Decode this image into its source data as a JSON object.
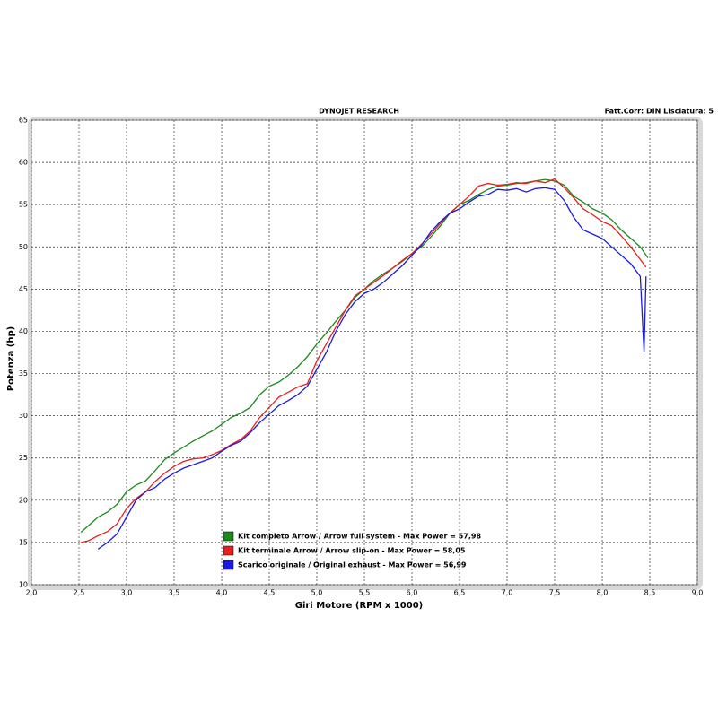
{
  "chart_data": {
    "type": "line",
    "title": "DYNOJET RESEARCH",
    "subtitle": "Fatt.Corr: DIN  Lisciatura: 5",
    "x_label": "Giri Motore (RPM x 1000)",
    "y_label": "Potenza (hp)",
    "xlim": [
      2,
      9
    ],
    "ylim": [
      10,
      65
    ],
    "xticks": [
      {
        "value": 2,
        "label": "2,0"
      },
      {
        "value": 2.5,
        "label": "2,5"
      },
      {
        "value": 3,
        "label": "3,0"
      },
      {
        "value": 3.5,
        "label": "3,5"
      },
      {
        "value": 4,
        "label": "4,0"
      },
      {
        "value": 4.5,
        "label": "4,5"
      },
      {
        "value": 5,
        "label": "5,0"
      },
      {
        "value": 5.5,
        "label": "5,5"
      },
      {
        "value": 6,
        "label": "6,0"
      },
      {
        "value": 6.5,
        "label": "6,5"
      },
      {
        "value": 7,
        "label": "7,0"
      },
      {
        "value": 7.5,
        "label": "7,5"
      },
      {
        "value": 8,
        "label": "8,0"
      },
      {
        "value": 8.5,
        "label": "8,5"
      },
      {
        "value": 9,
        "label": "9,0"
      }
    ],
    "yticks": [
      10,
      15,
      20,
      25,
      30,
      35,
      40,
      45,
      50,
      55,
      60,
      65
    ],
    "grid": true,
    "legend_position": "bottom-left",
    "series": [
      {
        "name": "Kit completo Arrow / Arrow full system - Max Power = 57,98",
        "color": "#1a8a1a",
        "x": [
          2.52,
          2.6,
          2.7,
          2.8,
          2.9,
          3.0,
          3.1,
          3.2,
          3.3,
          3.4,
          3.5,
          3.6,
          3.7,
          3.8,
          3.9,
          4.0,
          4.1,
          4.2,
          4.3,
          4.4,
          4.5,
          4.6,
          4.7,
          4.8,
          4.9,
          5.0,
          5.1,
          5.2,
          5.3,
          5.4,
          5.5,
          5.6,
          5.7,
          5.8,
          5.9,
          6.0,
          6.1,
          6.2,
          6.3,
          6.4,
          6.5,
          6.6,
          6.7,
          6.8,
          6.9,
          7.0,
          7.1,
          7.2,
          7.3,
          7.4,
          7.5,
          7.6,
          7.7,
          7.8,
          7.9,
          8.0,
          8.1,
          8.2,
          8.3,
          8.4,
          8.48
        ],
        "values": [
          16.2,
          17.0,
          18.0,
          18.6,
          19.5,
          21.0,
          21.8,
          22.3,
          23.5,
          24.8,
          25.6,
          26.3,
          27.0,
          27.6,
          28.2,
          29.0,
          29.8,
          30.3,
          31.0,
          32.5,
          33.5,
          34.0,
          34.8,
          35.8,
          37.0,
          38.5,
          39.8,
          41.2,
          42.5,
          44.0,
          45.0,
          46.0,
          46.8,
          47.5,
          48.3,
          49.2,
          50.0,
          51.2,
          52.5,
          54.0,
          55.0,
          55.5,
          56.2,
          56.8,
          57.2,
          57.3,
          57.5,
          57.6,
          57.8,
          57.98,
          57.8,
          57.3,
          56.0,
          55.3,
          54.5,
          54.0,
          53.2,
          52.0,
          51.0,
          50.0,
          48.7
        ]
      },
      {
        "name": "Kit terminale Arrow / Arrow slip-on - Max Power = 58,05",
        "color": "#e8201c",
        "x": [
          2.52,
          2.6,
          2.7,
          2.8,
          2.9,
          3.0,
          3.1,
          3.2,
          3.3,
          3.4,
          3.5,
          3.6,
          3.7,
          3.8,
          3.9,
          4.0,
          4.1,
          4.2,
          4.3,
          4.4,
          4.5,
          4.6,
          4.7,
          4.8,
          4.9,
          5.0,
          5.1,
          5.2,
          5.3,
          5.4,
          5.5,
          5.6,
          5.7,
          5.8,
          5.9,
          6.0,
          6.1,
          6.2,
          6.3,
          6.4,
          6.5,
          6.6,
          6.7,
          6.8,
          6.9,
          7.0,
          7.1,
          7.2,
          7.3,
          7.4,
          7.5,
          7.6,
          7.7,
          7.8,
          7.9,
          8.0,
          8.1,
          8.2,
          8.3,
          8.4,
          8.46
        ],
        "values": [
          15.0,
          15.2,
          15.8,
          16.3,
          17.2,
          19.0,
          20.2,
          21.0,
          22.2,
          23.2,
          24.0,
          24.6,
          24.9,
          25.0,
          25.4,
          25.9,
          26.6,
          27.2,
          28.2,
          29.8,
          31.0,
          32.2,
          32.8,
          33.4,
          33.8,
          36.5,
          38.5,
          40.5,
          42.5,
          44.2,
          45.0,
          45.8,
          46.6,
          47.5,
          48.4,
          49.2,
          50.3,
          51.5,
          52.8,
          54.0,
          55.0,
          56.0,
          57.2,
          57.5,
          57.3,
          57.4,
          57.6,
          57.5,
          57.8,
          57.6,
          58.05,
          57.0,
          55.8,
          54.5,
          53.8,
          53.0,
          52.5,
          51.3,
          50.0,
          48.5,
          47.6
        ]
      },
      {
        "name": "Scarico originale / Original exhaust - Max Power = 56,99",
        "color": "#1a1ae0",
        "x": [
          2.7,
          2.8,
          2.9,
          3.0,
          3.1,
          3.2,
          3.3,
          3.4,
          3.5,
          3.6,
          3.7,
          3.8,
          3.9,
          4.0,
          4.1,
          4.2,
          4.3,
          4.4,
          4.5,
          4.6,
          4.7,
          4.8,
          4.9,
          5.0,
          5.1,
          5.2,
          5.3,
          5.4,
          5.5,
          5.6,
          5.7,
          5.8,
          5.9,
          6.0,
          6.1,
          6.2,
          6.3,
          6.4,
          6.5,
          6.6,
          6.7,
          6.8,
          6.9,
          7.0,
          7.1,
          7.2,
          7.3,
          7.4,
          7.5,
          7.6,
          7.7,
          7.8,
          7.9,
          8.0,
          8.1,
          8.2,
          8.3,
          8.4,
          8.44,
          8.46
        ],
        "values": [
          14.2,
          15.0,
          16.0,
          18.0,
          20.0,
          21.0,
          21.5,
          22.5,
          23.2,
          23.8,
          24.2,
          24.6,
          25.0,
          25.8,
          26.5,
          27.0,
          28.0,
          29.2,
          30.2,
          31.2,
          31.8,
          32.5,
          33.5,
          35.5,
          37.5,
          40.0,
          42.0,
          43.5,
          44.5,
          45.0,
          45.8,
          46.8,
          47.8,
          49.0,
          50.2,
          51.8,
          53.0,
          54.0,
          54.5,
          55.3,
          56.0,
          56.2,
          56.8,
          56.7,
          56.9,
          56.5,
          56.9,
          56.99,
          56.8,
          55.5,
          53.5,
          52.0,
          51.5,
          51.0,
          50.0,
          49.0,
          48.0,
          46.5,
          37.5,
          46.5
        ]
      }
    ]
  }
}
